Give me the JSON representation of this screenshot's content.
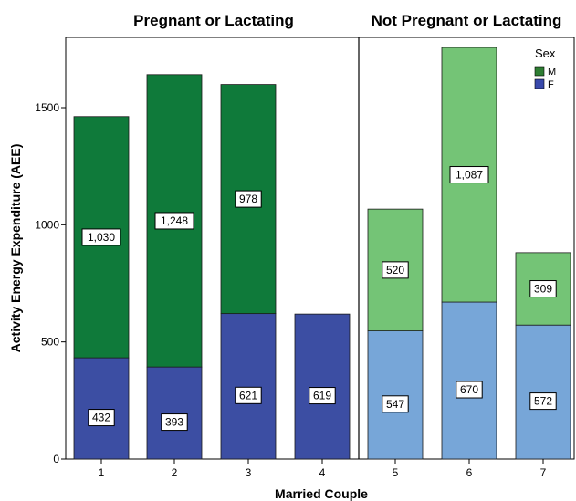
{
  "chart_data": {
    "type": "bar",
    "stacked": true,
    "xlabel": "Married Couple",
    "ylabel": "Activity Energy Expenditure (AEE)",
    "ylim": [
      0,
      1800
    ],
    "yticks": [
      "0",
      "500",
      "1000",
      "1500"
    ],
    "ytick_values": [
      0,
      500,
      1000,
      1500
    ],
    "legend": {
      "title": "Sex",
      "position": "top-right",
      "entries": [
        {
          "name": "M",
          "color": "#2e7d32"
        },
        {
          "name": "F",
          "color": "#3949ab"
        }
      ]
    },
    "panels": [
      {
        "title": "Pregnant or Lactating",
        "categories": [
          "1",
          "2",
          "3",
          "4"
        ],
        "color_f": "#3c4ea3",
        "color_m": "#0f7a3a",
        "series": [
          {
            "name": "F",
            "values": [
              432,
              393,
              621,
              619
            ],
            "labels": [
              "432",
              "393",
              "621",
              "619"
            ]
          },
          {
            "name": "M",
            "values": [
              1030,
              1248,
              978,
              0
            ],
            "labels": [
              "1,030",
              "1,248",
              "978",
              ""
            ]
          }
        ]
      },
      {
        "title": "Not Pregnant or Lactating",
        "categories": [
          "5",
          "6",
          "7"
        ],
        "color_f": "#77a6d8",
        "color_m": "#74c476",
        "series": [
          {
            "name": "F",
            "values": [
              547,
              670,
              572
            ],
            "labels": [
              "547",
              "670",
              "572"
            ]
          },
          {
            "name": "M",
            "values": [
              520,
              1087,
              309
            ],
            "labels": [
              "520",
              "1,087",
              "309"
            ]
          }
        ]
      }
    ]
  }
}
